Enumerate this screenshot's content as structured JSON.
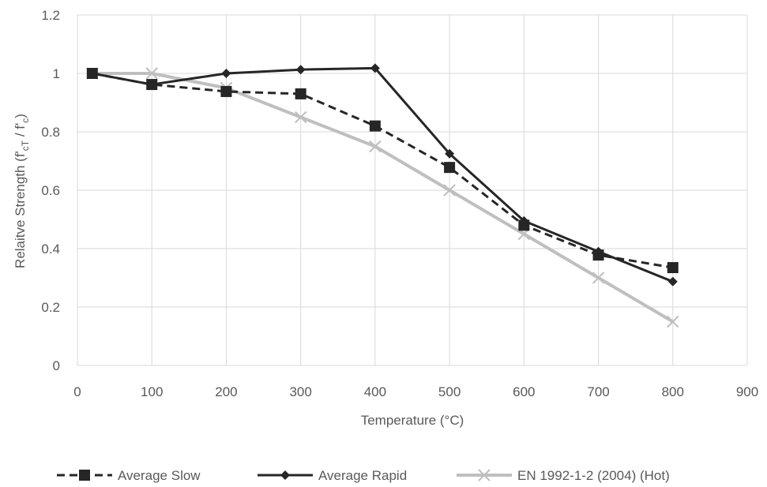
{
  "chart_data": {
    "type": "line",
    "xlabel": "Temperature (°C)",
    "ylabel_parts": {
      "main": "Relaitve Strength (f'",
      "sub1": "cT",
      "mid": " / f'",
      "sub2": "c",
      "end": ")"
    },
    "xlim": [
      0,
      900
    ],
    "ylim": [
      0,
      1.2
    ],
    "xticks": [
      0,
      100,
      200,
      300,
      400,
      500,
      600,
      700,
      800,
      900
    ],
    "yticks": [
      0,
      0.2,
      0.4,
      0.6,
      0.8,
      1,
      1.2
    ],
    "ytick_labels": [
      "0",
      "0.2",
      "0.4",
      "0.6",
      "0.8",
      "1",
      "1.2"
    ],
    "grid": true,
    "legend_position": "bottom",
    "series": [
      {
        "name": "Average Slow",
        "color": "#262626",
        "style": "dashed",
        "marker": "square",
        "x": [
          20,
          100,
          200,
          300,
          400,
          500,
          600,
          700,
          800
        ],
        "y": [
          1.0,
          0.962,
          0.938,
          0.93,
          0.82,
          0.678,
          0.48,
          0.378,
          0.335
        ]
      },
      {
        "name": "Average Rapid",
        "color": "#262626",
        "style": "solid",
        "marker": "diamond",
        "x": [
          20,
          100,
          200,
          300,
          400,
          500,
          600,
          700,
          800
        ],
        "y": [
          1.0,
          0.962,
          1.0,
          1.013,
          1.018,
          0.725,
          0.495,
          0.39,
          0.287
        ]
      },
      {
        "name": "EN 1992-1-2 (2004) (Hot)",
        "color": "#bfbfbf",
        "style": "solid",
        "marker": "x",
        "x": [
          20,
          100,
          200,
          300,
          400,
          500,
          600,
          700,
          800
        ],
        "y": [
          1.0,
          1.0,
          0.95,
          0.85,
          0.75,
          0.6,
          0.45,
          0.3,
          0.15
        ]
      }
    ]
  }
}
